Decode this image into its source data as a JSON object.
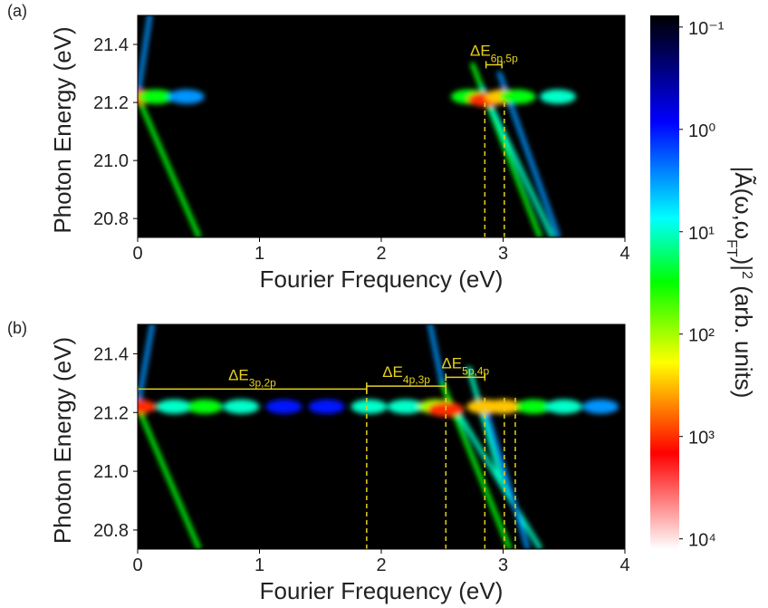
{
  "chart_data": [
    {
      "type": "heatmap",
      "panel_label": "(a)",
      "xlabel": "Fourier Frequency (eV)",
      "ylabel": "Photon Energy (eV)",
      "xlim": [
        0,
        4
      ],
      "xticks": [
        0,
        1,
        2,
        3,
        4
      ],
      "ylim": [
        20.735,
        21.5
      ],
      "yticks": [
        20.8,
        {
          "value": 21,
          "label": "21.0"
        },
        21.2,
        21.4
      ],
      "streaks": [
        {
          "x": [
            0.0,
            0.5
          ],
          "y": [
            21.22,
            20.74
          ],
          "value": 30
        },
        {
          "x": [
            0.0,
            0.1
          ],
          "y": [
            21.22,
            21.5
          ],
          "value": 3
        },
        {
          "x": [
            2.75,
            3.3
          ],
          "y": [
            21.33,
            20.74
          ],
          "value": 30
        },
        {
          "x": [
            2.83,
            3.4
          ],
          "y": [
            21.25,
            20.74
          ],
          "value": 10
        },
        {
          "x": [
            2.97,
            3.45
          ],
          "y": [
            21.3,
            20.74
          ],
          "value": 3
        }
      ],
      "spots": [
        {
          "x": 0.0,
          "y": 21.22,
          "value": 1000
        },
        {
          "x": 0.15,
          "y": 21.22,
          "value": 30
        },
        {
          "x": 0.4,
          "y": 21.22,
          "value": 3
        },
        {
          "x": 2.72,
          "y": 21.22,
          "value": 30
        },
        {
          "x": 2.86,
          "y": 21.21,
          "value": 1000
        },
        {
          "x": 3.0,
          "y": 21.22,
          "value": 300
        },
        {
          "x": 3.12,
          "y": 21.22,
          "value": 30
        },
        {
          "x": 3.45,
          "y": 21.22,
          "value": 10
        }
      ],
      "guides": [
        {
          "x": 2.85,
          "y": 21.2
        },
        {
          "x": 3.01,
          "y": 21.2
        }
      ],
      "annotations": [
        {
          "label": "ΔE",
          "subscript": "6p,5p",
          "x": [
            2.86,
            2.99
          ],
          "y": 21.33
        }
      ]
    },
    {
      "type": "heatmap",
      "panel_label": "(b)",
      "xlabel": "Fourier Frequency (eV)",
      "ylabel": "Photon Energy (eV)",
      "xlim": [
        0,
        4
      ],
      "xticks": [
        0,
        1,
        2,
        3,
        4
      ],
      "ylim": [
        20.735,
        21.5
      ],
      "yticks": [
        20.8,
        {
          "value": 21,
          "label": "21.0"
        },
        21.2,
        21.4
      ],
      "streaks": [
        {
          "x": [
            0.0,
            0.5
          ],
          "y": [
            21.22,
            20.74
          ],
          "value": 30
        },
        {
          "x": [
            0.0,
            0.12
          ],
          "y": [
            21.22,
            21.5
          ],
          "value": 3
        },
        {
          "x": [
            2.4,
            2.5
          ],
          "y": [
            21.5,
            21.3
          ],
          "value": 3
        },
        {
          "x": [
            2.5,
            3.05
          ],
          "y": [
            21.3,
            20.74
          ],
          "value": 30
        },
        {
          "x": [
            2.6,
            3.3
          ],
          "y": [
            21.22,
            20.74
          ],
          "value": 10
        },
        {
          "x": [
            2.72,
            3.0
          ],
          "y": [
            21.35,
            20.95
          ],
          "value": 10
        },
        {
          "x": [
            2.85,
            3.2
          ],
          "y": [
            21.22,
            20.74
          ],
          "value": 3
        }
      ],
      "spots": [
        {
          "x": 0.0,
          "y": 21.22,
          "value": 1000
        },
        {
          "x": 0.3,
          "y": 21.22,
          "value": 10
        },
        {
          "x": 0.55,
          "y": 21.22,
          "value": 30
        },
        {
          "x": 0.85,
          "y": 21.22,
          "value": 10
        },
        {
          "x": 1.2,
          "y": 21.22,
          "value": 1
        },
        {
          "x": 1.55,
          "y": 21.22,
          "value": 1
        },
        {
          "x": 1.9,
          "y": 21.22,
          "value": 10
        },
        {
          "x": 2.2,
          "y": 21.22,
          "value": 10
        },
        {
          "x": 2.45,
          "y": 21.22,
          "value": 100
        },
        {
          "x": 2.53,
          "y": 21.21,
          "value": 1000
        },
        {
          "x": 2.85,
          "y": 21.22,
          "value": 300
        },
        {
          "x": 3.0,
          "y": 21.22,
          "value": 300
        },
        {
          "x": 3.25,
          "y": 21.22,
          "value": 30
        },
        {
          "x": 3.5,
          "y": 21.22,
          "value": 10
        },
        {
          "x": 3.8,
          "y": 21.22,
          "value": 3
        }
      ],
      "guides": [
        {
          "x": 1.88,
          "y": 21.28
        },
        {
          "x": 2.53,
          "y": 21.28
        },
        {
          "x": 2.85,
          "y": 21.25
        },
        {
          "x": 3.01,
          "y": 21.25
        },
        {
          "x": 3.1,
          "y": 21.25
        }
      ],
      "annotations": [
        {
          "label": "ΔE",
          "subscript": "3p,2p",
          "x": [
            0,
            1.88
          ],
          "y": 21.28
        },
        {
          "label": "ΔE",
          "subscript": "4p,3p",
          "x": [
            1.88,
            2.53
          ],
          "y": 21.29
        },
        {
          "label": "ΔE",
          "subscript": "5p,4p",
          "x": [
            2.53,
            2.85
          ],
          "y": 21.32
        }
      ]
    },
    {
      "type": "colorbar",
      "scale": "log",
      "label": [
        "|Ã(ω,ω",
        "FT",
        ")|",
        "2",
        " (arb. units)"
      ],
      "clim": [
        0.077,
        12600
      ],
      "ticks": [
        {
          "value": 0.1,
          "label": "10⁻¹"
        },
        {
          "value": 1,
          "label": "10⁰"
        },
        {
          "value": 10,
          "label": "10¹"
        },
        {
          "value": 100,
          "label": "10²"
        },
        {
          "value": 1000,
          "label": "10³"
        },
        {
          "value": 10000,
          "label": "10⁴"
        }
      ],
      "colormap": [
        "#000000",
        "#0000ff",
        "#00ffff",
        "#00ff00",
        "#ffff00",
        "#ff0000",
        "#ffffff"
      ]
    }
  ]
}
